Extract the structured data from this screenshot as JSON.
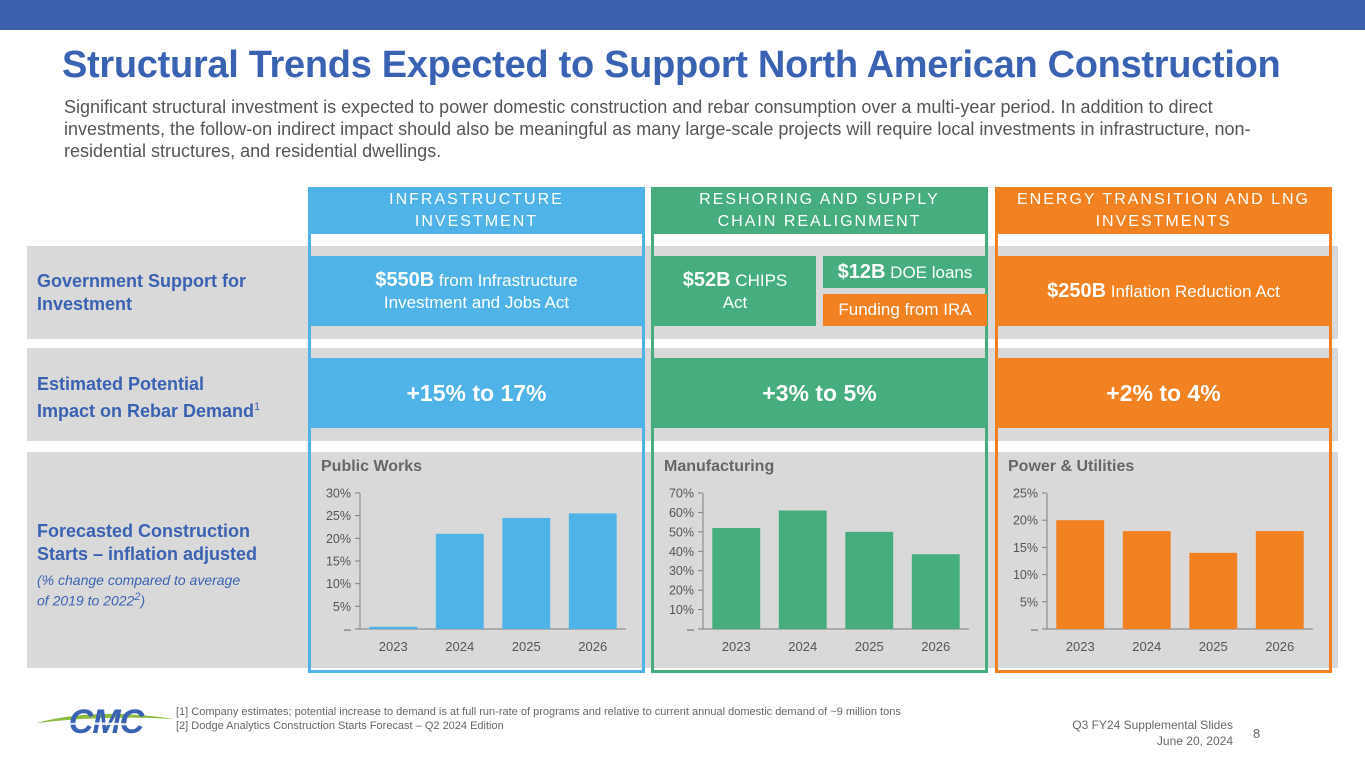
{
  "title": "Structural Trends Expected to Support North American Construction",
  "subtitle": "Significant structural investment is expected to power domestic construction and rebar consumption over a multi-year period.  In addition to direct investments, the follow-on indirect impact should also be meaningful as many large-scale projects will require local investments in infrastructure, non-residential structures, and residential dwellings.",
  "rows": {
    "gov_line1": "Government Support for",
    "gov_line2": "Investment",
    "impact_line1": "Estimated Potential",
    "impact_line2": "Impact on Rebar Demand",
    "impact_sup": "1",
    "forecast_line1": "Forecasted Construction",
    "forecast_line2": "Starts – inflation adjusted",
    "forecast_note1": "(% change compared to average",
    "forecast_note2": "of 2019 to 2022",
    "forecast_note_sup": "2",
    "forecast_note_end": ")"
  },
  "columns": [
    {
      "header_line1": "INFRASTRUCTURE",
      "header_line2": "INVESTMENT",
      "gov_amount": "$550B",
      "gov_text": " from Infrastructure Investment and Jobs Act",
      "impact": "+15% to 17%",
      "color": "#4fb3e8"
    },
    {
      "header_line1": "RESHORING AND SUPPLY",
      "header_line2": "CHAIN REALIGNMENT",
      "gov_amount": "$52B",
      "gov_text": " CHIPS Act",
      "gov2_amount": "$12B",
      "gov2_text": " DOE loans",
      "gov3_text": "Funding from IRA",
      "impact": "+3% to 5%",
      "color": "#45ad7e"
    },
    {
      "header_line1": "ENERGY TRANSITION AND LNG",
      "header_line2": "INVESTMENTS",
      "gov_amount": "$250B",
      "gov_text": " Inflation Reduction Act",
      "impact": "+2% to 4%",
      "color": "#f28122"
    }
  ],
  "chart_data": [
    {
      "type": "bar",
      "title": "Public Works",
      "categories": [
        "2023",
        "2024",
        "2025",
        "2026"
      ],
      "values": [
        0.5,
        21,
        24.5,
        25.5
      ],
      "ylim": [
        0,
        30
      ],
      "yticks": [
        0,
        5,
        10,
        15,
        20,
        25,
        30
      ],
      "ytick_labels": [
        "–",
        "5%",
        "10%",
        "15%",
        "20%",
        "25%",
        "30%"
      ],
      "color": "#4fb3e8"
    },
    {
      "type": "bar",
      "title": "Manufacturing",
      "categories": [
        "2023",
        "2024",
        "2025",
        "2026"
      ],
      "values": [
        52,
        61,
        50,
        38.5
      ],
      "ylim": [
        0,
        70
      ],
      "yticks": [
        0,
        10,
        20,
        30,
        40,
        50,
        60,
        70
      ],
      "ytick_labels": [
        "–",
        "10%",
        "20%",
        "30%",
        "40%",
        "50%",
        "60%",
        "70%"
      ],
      "color": "#45ad7e"
    },
    {
      "type": "bar",
      "title": "Power & Utilities",
      "categories": [
        "2023",
        "2024",
        "2025",
        "2026"
      ],
      "values": [
        20,
        18,
        14,
        18
      ],
      "ylim": [
        0,
        25
      ],
      "yticks": [
        0,
        5,
        10,
        15,
        20,
        25
      ],
      "ytick_labels": [
        "–",
        "5%",
        "10%",
        "15%",
        "20%",
        "25%"
      ],
      "color": "#f28122"
    }
  ],
  "footer": {
    "note1": "[1] Company estimates; potential increase to demand is at full run-rate of programs and relative to current annual domestic demand of ~9 million tons",
    "note2": "[2] Dodge Analytics Construction Starts Forecast – Q2 2024 Edition",
    "deck_title": "Q3 FY24 Supplemental Slides",
    "deck_date": "June 20, 2024",
    "page_number": "8",
    "logo_text": "CMC"
  },
  "colors": {
    "title": "#3a62b3",
    "topbar": "#3a5fae",
    "band": "#d9d9d9"
  }
}
